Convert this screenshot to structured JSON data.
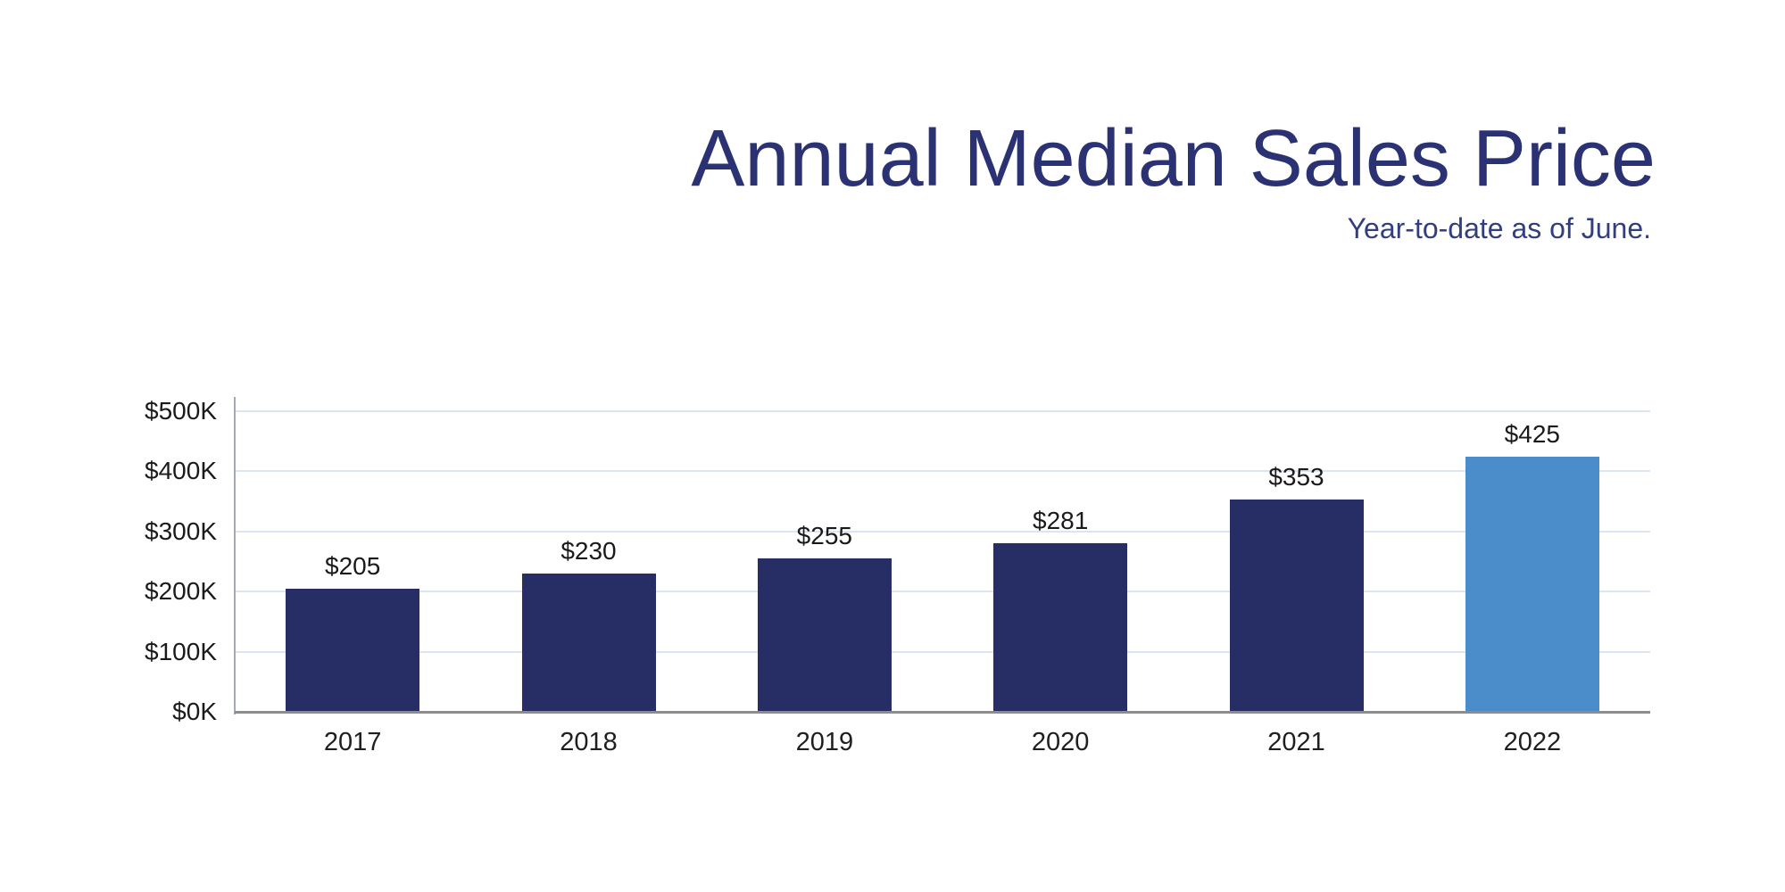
{
  "page": {
    "background_color": "#ffffff"
  },
  "header": {
    "title": "Annual Median Sales Price",
    "subtitle": "Year-to-date as of June.",
    "title_color": "#2b3273",
    "subtitle_color": "#323e7d"
  },
  "chart_data": {
    "type": "bar",
    "title": "Annual Median Sales Price",
    "subtitle": "Year-to-date as of June.",
    "categories": [
      "2017",
      "2018",
      "2019",
      "2020",
      "2021",
      "2022"
    ],
    "values": [
      205,
      230,
      255,
      281,
      353,
      425
    ],
    "bar_labels": [
      "$205",
      "$230",
      "$255",
      "$281",
      "$353",
      "$425"
    ],
    "unit": "thousands of dollars",
    "xlabel": "",
    "ylabel": "",
    "ylim": [
      0,
      500
    ],
    "ytick_interval": 100,
    "ytick_labels": [
      "$0K",
      "$100K",
      "$200K",
      "$300K",
      "$400K",
      "$500K"
    ],
    "grid": true,
    "legend": false,
    "bar_color": "#272e66",
    "highlight_index": 5,
    "highlight_color": "#4b8ccb",
    "gridline_color": "#dce6f2",
    "axis_color": "#8c8c8c",
    "label_color": "#1a1a1a"
  }
}
